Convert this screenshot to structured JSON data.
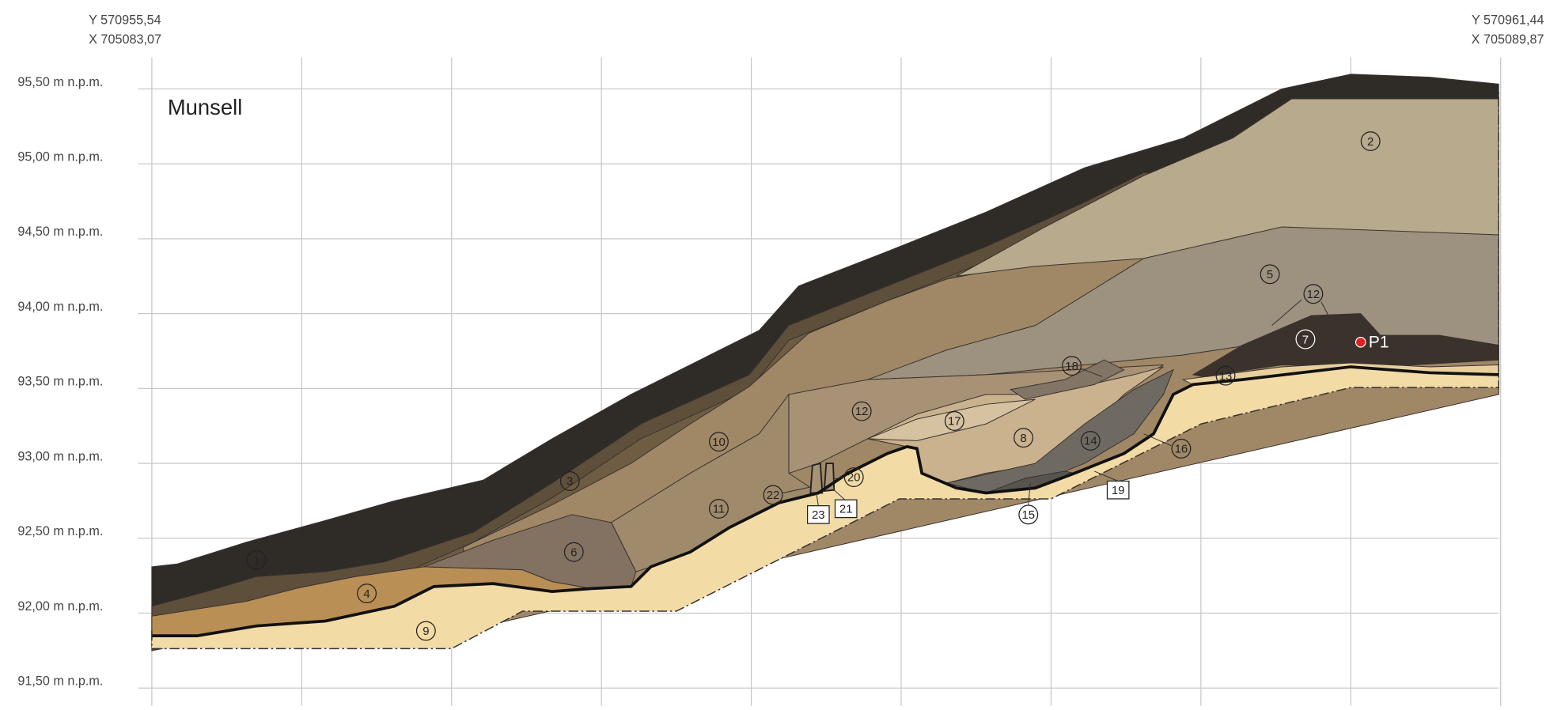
{
  "coordinates": {
    "left": {
      "y": "Y 570955,54",
      "x": "X 705083,07"
    },
    "right": {
      "y": "Y 570961,44",
      "x": "X 705089,87"
    }
  },
  "title": "Munsell",
  "elevations": [
    "95,50 m n.p.m.",
    "94,50 m n.p.m.",
    "94,00 m n.p.m.",
    "93,50 m n.p.m.",
    "93,00 m n.p.m.",
    "92,50 m n.p.m.",
    "92,00 m n.p.m.",
    "91,50 m n.p.m."
  ],
  "elevation_95": "95,00 m n.p.m.",
  "layers": [
    "1",
    "2",
    "3",
    "4",
    "5",
    "6",
    "7",
    "8",
    "9",
    "10",
    "11",
    "12",
    "12",
    "13",
    "14",
    "15",
    "16",
    "17",
    "18",
    "20",
    "22"
  ],
  "boxed_layers": [
    "19",
    "21",
    "23"
  ],
  "point": "P1"
}
